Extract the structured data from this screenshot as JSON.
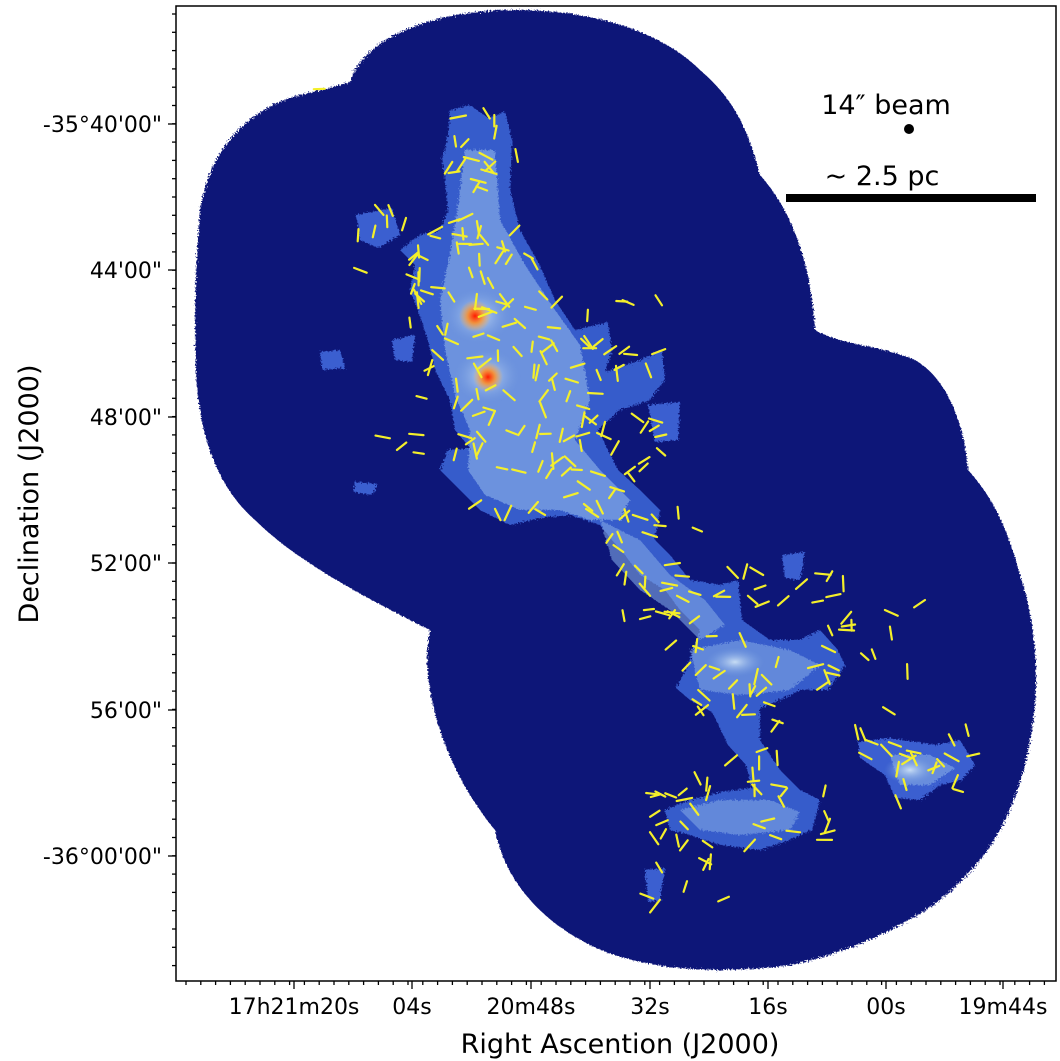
{
  "figure": {
    "xlabel": "Right Ascention (J2000)",
    "ylabel": "Declination (J2000)",
    "x_ticks": [
      "17h21m20s",
      "04s",
      "20m48s",
      "32s",
      "16s",
      "00s",
      "19m44s"
    ],
    "y_ticks": [
      "-35°40'00\"",
      "44'00\"",
      "48'00\"",
      "52'00\"",
      "56'00\"",
      "-36°00'00\""
    ],
    "beam_label": "14″ beam",
    "scale_label": "~ 2.5 pc",
    "colors": {
      "background_map": "#0a1378",
      "filament_low": "#3a5fd0",
      "filament_high": "#9ec3ee",
      "peak": "#ff2a10",
      "vectors": "#f4ef2a",
      "frame": "#000000"
    }
  }
}
